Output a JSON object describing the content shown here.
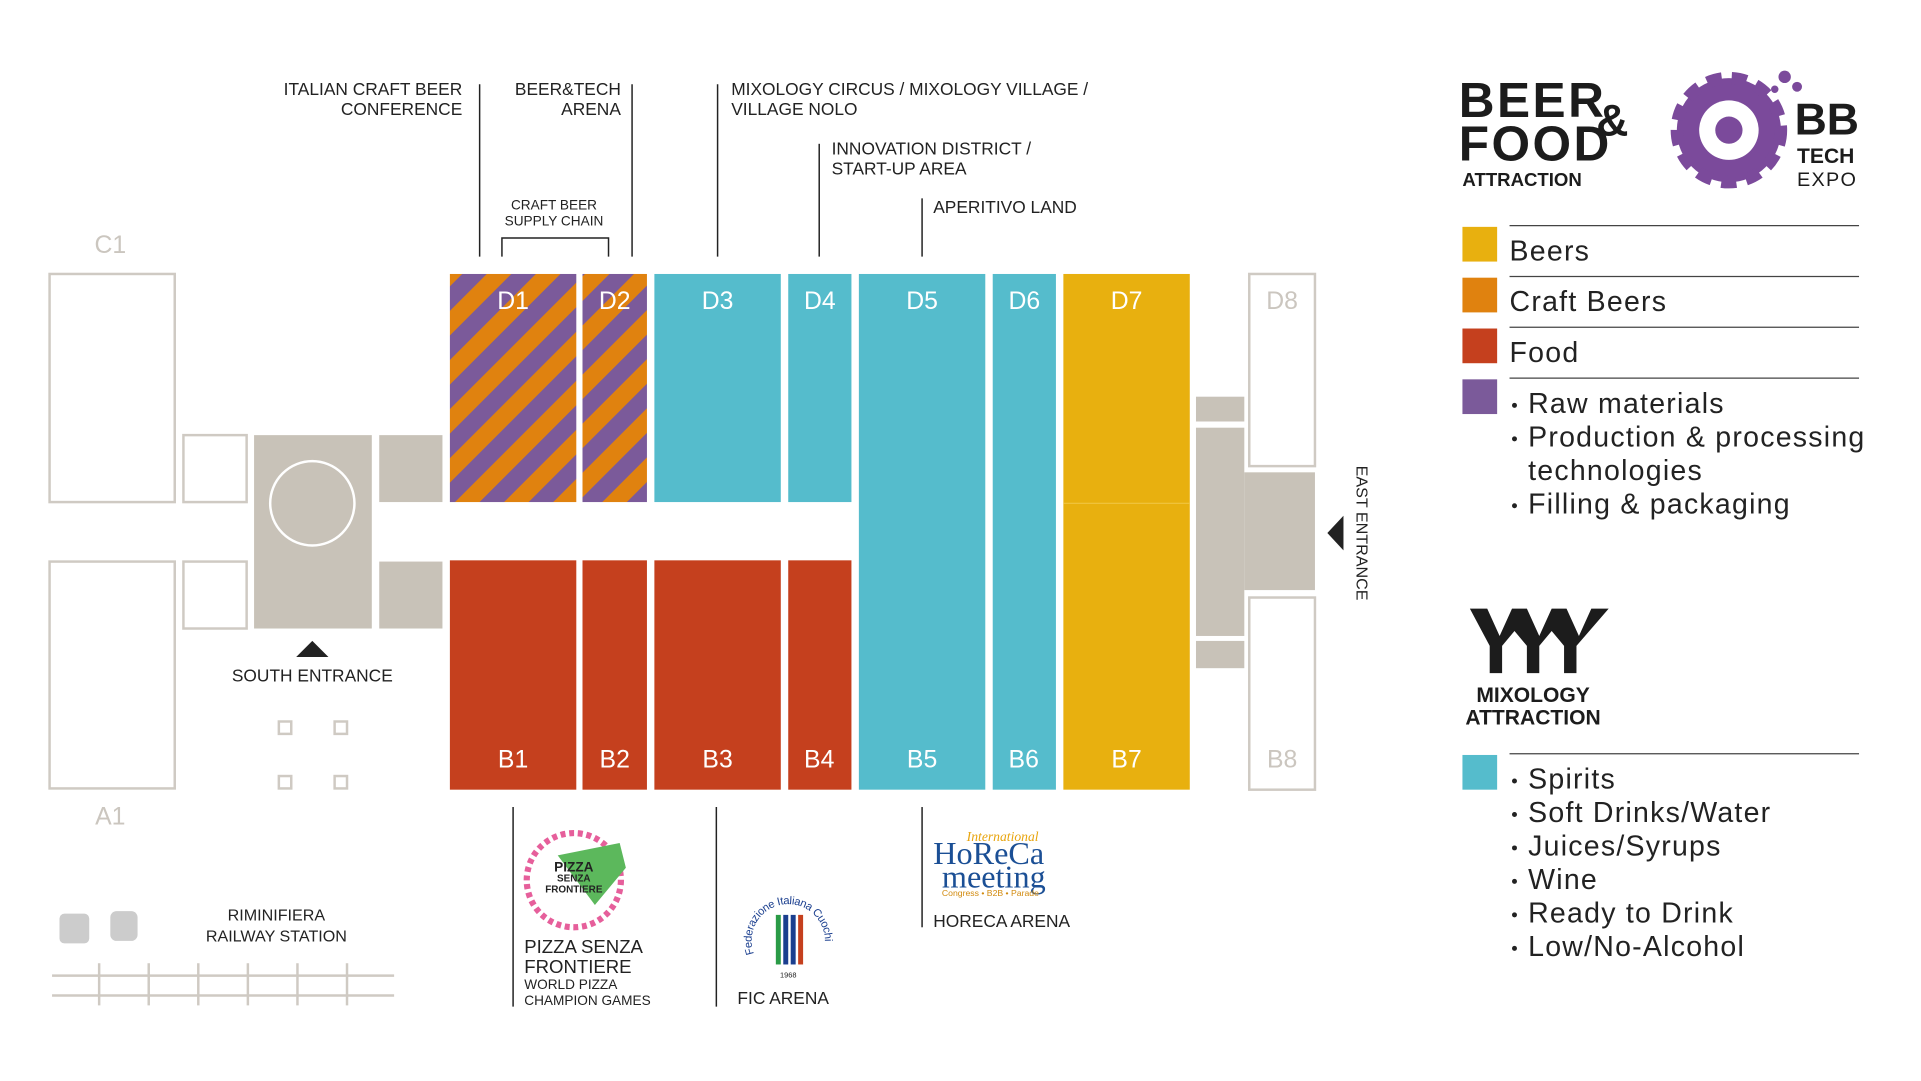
{
  "logos": {
    "beer_food": {
      "line1": "BEER",
      "ampersand": "&",
      "line2": "FOOD",
      "line3": "ATTRACTION"
    },
    "bb_tech": {
      "line1": "BB",
      "line2": "TECH",
      "line3": "EXPO"
    },
    "mixology": {
      "line1": "MIXOLOGY",
      "line2": "ATTRACTION"
    },
    "horeca": {
      "script": "International",
      "line1": "HoReCa",
      "line2": "meeting",
      "tagline": "Congress • B2B • Parade"
    },
    "pizza": {
      "lines": [
        "PIZZA",
        "SENZA",
        "FRONTIERE"
      ]
    },
    "fic": {
      "arc": "Federazione Italiana Cuochi",
      "year": "1968"
    }
  },
  "halls": {
    "west": [
      "C1",
      "A1"
    ],
    "north": [
      "D1",
      "D2",
      "D3",
      "D4",
      "D5",
      "D6",
      "D7",
      "D8"
    ],
    "south": [
      "B1",
      "B2",
      "B3",
      "B4",
      "B5",
      "B6",
      "B7",
      "B8"
    ]
  },
  "annotations": {
    "north": [
      {
        "lines": [
          "ITALIAN CRAFT BEER",
          "CONFERENCE"
        ]
      },
      {
        "lines": [
          "BEER&TECH",
          "ARENA"
        ]
      },
      {
        "lines": [
          "CRAFT BEER",
          "SUPPLY CHAIN"
        ]
      },
      {
        "lines": [
          "MIXOLOGY CIRCUS / MIXOLOGY VILLAGE /",
          "VILLAGE NOLO"
        ]
      },
      {
        "lines": [
          "INNOVATION DISTRICT /",
          "START-UP AREA"
        ]
      },
      {
        "lines": [
          "APERITIVO LAND"
        ]
      }
    ],
    "south": [
      {
        "lines": [
          "PIZZA SENZA",
          "FRONTIERE"
        ],
        "sublines": [
          "WORLD PIZZA",
          "CHAMPION GAMES"
        ]
      },
      {
        "lines": [
          "FIC ARENA"
        ]
      },
      {
        "lines": [
          "HORECA ARENA"
        ]
      }
    ]
  },
  "entrances": {
    "south": "SOUTH ENTRANCE",
    "east": "EAST ENTRANCE"
  },
  "station": {
    "lines": [
      "RIMINIFIERA",
      "RAILWAY STATION"
    ]
  },
  "legend": {
    "beer_food": [
      {
        "label": "Beers"
      },
      {
        "label": "Craft Beers"
      },
      {
        "label": "Food"
      },
      {
        "items": [
          [
            "Raw materials"
          ],
          [
            "Production & processing",
            "technologies"
          ],
          [
            "Filling & packaging"
          ]
        ]
      }
    ],
    "mixology": [
      {
        "items": [
          [
            "Spirits"
          ],
          [
            "Soft Drinks/Water"
          ],
          [
            "Juices/Syrups"
          ],
          [
            "Wine"
          ],
          [
            "Ready to Drink"
          ],
          [
            "Low/No-Alcohol"
          ]
        ]
      }
    ]
  }
}
